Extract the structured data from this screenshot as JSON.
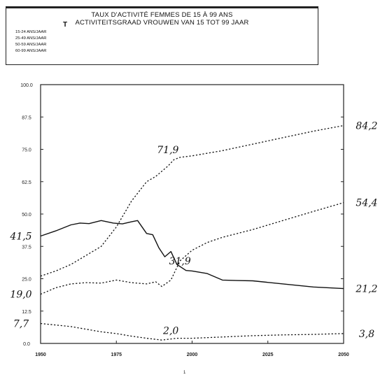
{
  "header": {
    "title_fr": "TAUX D'ACTIVITÉ FEMMES DE 15 À 99 ANS",
    "title_nl": "ACTIVITEITSGRAAD VROUWEN VAN 15 TOT 99 JAAR",
    "mark": "T",
    "legend": [
      "15-24 ANS/JAAR",
      "25-49 ANS/JAAR",
      "50-59 ANS/JAAR",
      "60-99 ANS/JAAR"
    ]
  },
  "page_number": "1",
  "chart_data": {
    "type": "line",
    "xlim": [
      1950,
      2050
    ],
    "ylim": [
      0,
      100
    ],
    "x_ticks": [
      "1950",
      "1975",
      "2000",
      "2025",
      "2050"
    ],
    "y_ticks": [
      "0.0",
      "12.5",
      "25.0",
      "37.5",
      "50.0",
      "62.5",
      "75.0",
      "87.5",
      "100.0"
    ],
    "grid": false,
    "series": [
      {
        "style": "solid",
        "x": [
          1950,
          1955,
          1960,
          1963,
          1966,
          1970,
          1974,
          1977,
          1980,
          1982,
          1985,
          1987,
          1989,
          1991,
          1993,
          1995,
          1998,
          2000,
          2005,
          2010,
          2015,
          2020,
          2030,
          2040,
          2050
        ],
        "y": [
          41.5,
          43.5,
          45.8,
          46.5,
          46.3,
          47.5,
          46.5,
          46.2,
          47.0,
          47.5,
          42.5,
          42.0,
          37.0,
          33.5,
          35.5,
          30.5,
          28.2,
          28.0,
          27.0,
          24.5,
          24.3,
          24.2,
          23.0,
          21.8,
          21.2
        ]
      },
      {
        "style": "dashed",
        "x": [
          1950,
          1955,
          1960,
          1965,
          1970,
          1975,
          1980,
          1985,
          1988,
          1990,
          1992,
          1994,
          1996,
          2000,
          2005,
          2010,
          2020,
          2030,
          2040,
          2050
        ],
        "y": [
          26.0,
          28.0,
          30.5,
          34.0,
          37.5,
          45.0,
          55.0,
          62.5,
          64.5,
          66.5,
          68.5,
          71.0,
          71.9,
          72.5,
          73.5,
          74.5,
          77.0,
          79.5,
          82.0,
          84.2
        ]
      },
      {
        "style": "dashed",
        "x": [
          1950,
          1955,
          1960,
          1965,
          1970,
          1975,
          1980,
          1985,
          1988,
          1990,
          1993,
          1996,
          2000,
          2005,
          2010,
          2020,
          2030,
          2040,
          2050
        ],
        "y": [
          19.0,
          21.5,
          23.0,
          23.5,
          23.3,
          24.5,
          23.5,
          23.0,
          23.8,
          22.0,
          24.5,
          31.9,
          36.0,
          39.0,
          41.0,
          44.0,
          47.5,
          51.0,
          54.4
        ]
      },
      {
        "style": "dashed",
        "x": [
          1950,
          1960,
          1970,
          1975,
          1980,
          1985,
          1990,
          1995,
          2000,
          2010,
          2020,
          2030,
          2040,
          2050
        ],
        "y": [
          7.7,
          6.5,
          4.5,
          3.8,
          2.8,
          2.0,
          1.3,
          2.0,
          2.0,
          2.5,
          3.0,
          3.3,
          3.5,
          3.8
        ]
      }
    ],
    "annotations": [
      {
        "text": "41,5",
        "x": 1950,
        "y": 41.5,
        "side": "left"
      },
      {
        "text": "19,0",
        "x": 1950,
        "y": 19.0,
        "side": "left"
      },
      {
        "text": "7,7",
        "x": 1950,
        "y": 7.7,
        "side": "left"
      },
      {
        "text": "71,9",
        "x": 1992,
        "y": 71.9,
        "side": "above"
      },
      {
        "text": "31,9",
        "x": 1996,
        "y": 31.9,
        "side": "center"
      },
      {
        "text": "2,0",
        "x": 1993,
        "y": 2.0,
        "side": "above"
      },
      {
        "text": "84,2",
        "x": 2050,
        "y": 84.2,
        "side": "right"
      },
      {
        "text": "54,4",
        "x": 2050,
        "y": 54.4,
        "side": "right"
      },
      {
        "text": "21,2",
        "x": 2050,
        "y": 21.2,
        "side": "right"
      },
      {
        "text": "3,8",
        "x": 2050,
        "y": 3.8,
        "side": "right"
      }
    ]
  }
}
